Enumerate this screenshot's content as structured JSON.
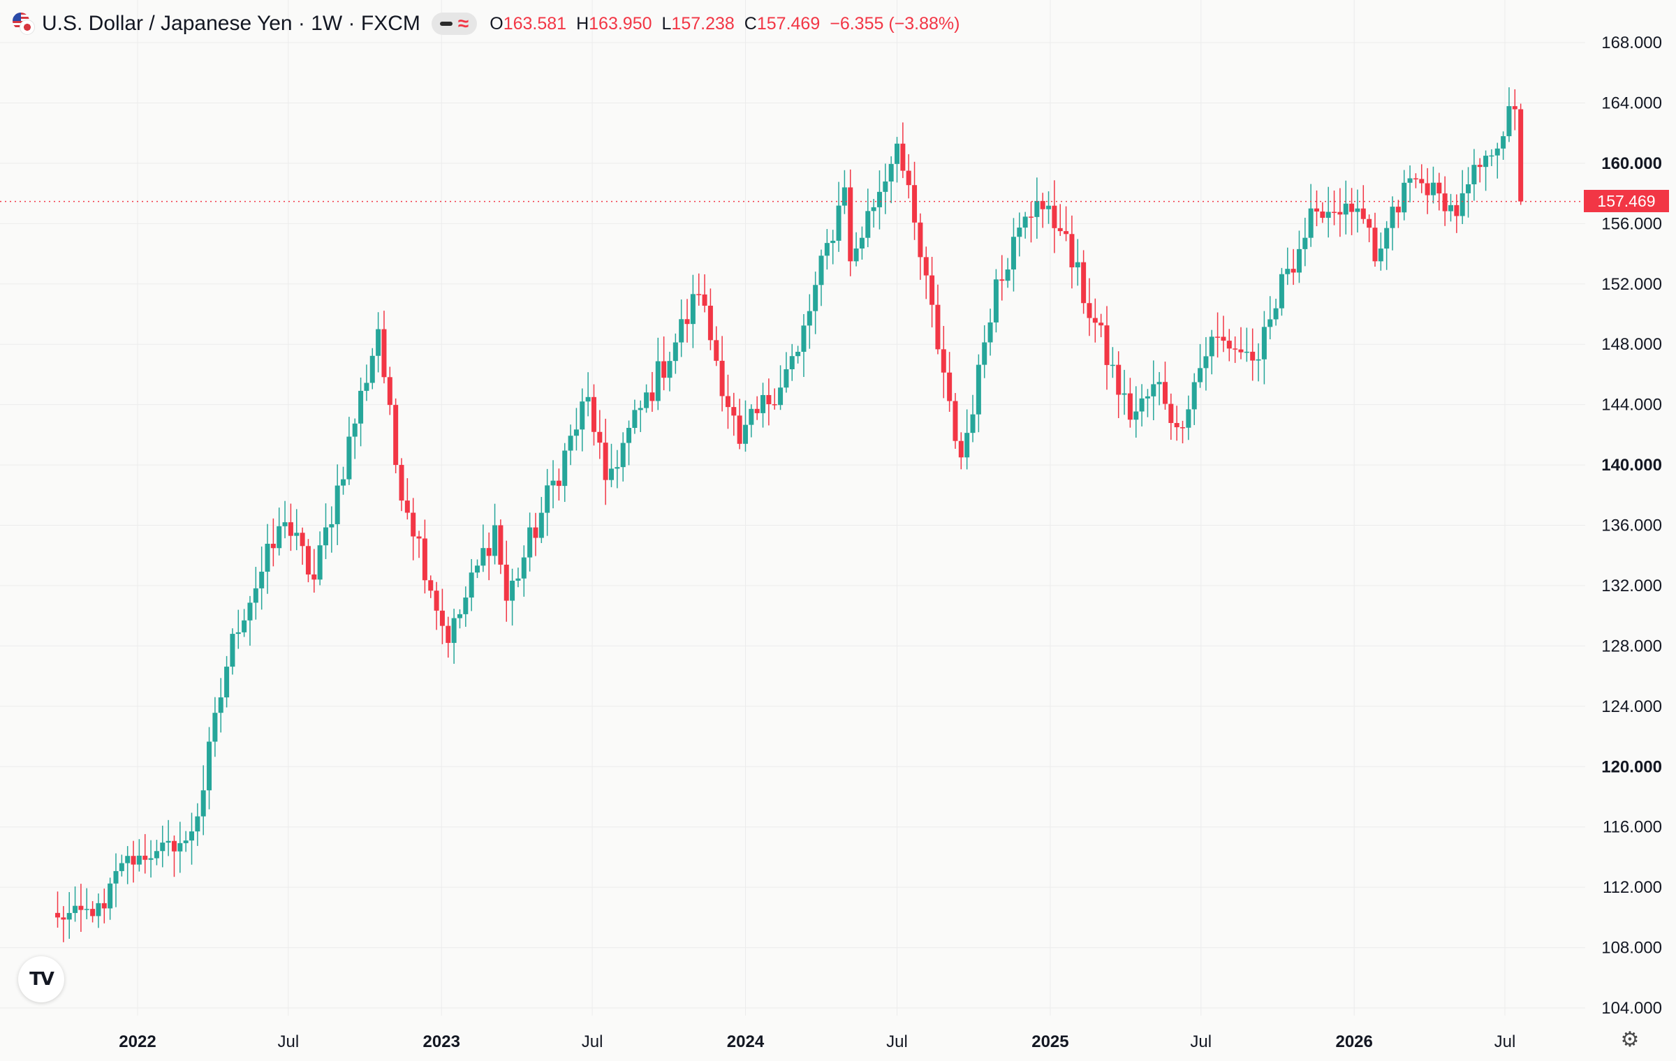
{
  "header": {
    "title": "U.S. Dollar / Japanese Yen · 1W · FXCM",
    "open_label": "O",
    "open": "163.581",
    "high_label": "H",
    "high": "163.950",
    "low_label": "L",
    "low": "157.238",
    "close_label": "C",
    "close": "157.469",
    "change": "−6.355 (−3.88%)",
    "flag_icon": "us-jp-flag-icon",
    "indicator_icons": [
      "dash-icon",
      "wave-icon"
    ]
  },
  "colors": {
    "up": "#26a69a",
    "down": "#f23645",
    "background": "#fafaf9",
    "grid": "#ececec",
    "axis_text": "#131722",
    "price_line": "#f23645"
  },
  "last_price_label": "157.469",
  "logo_icon": "tradingview-logo-icon",
  "settings_icon": "gear-icon",
  "chart_data": {
    "type": "candlestick",
    "interval": "1W",
    "x_axis": {
      "ticks": [
        {
          "date": "2022-01-01",
          "label": "2022",
          "bold": true
        },
        {
          "date": "2022-07-01",
          "label": "Jul",
          "bold": false
        },
        {
          "date": "2023-01-01",
          "label": "2023",
          "bold": true
        },
        {
          "date": "2023-07-01",
          "label": "Jul",
          "bold": false
        },
        {
          "date": "2024-01-01",
          "label": "2024",
          "bold": true
        },
        {
          "date": "2024-07-01",
          "label": "Jul",
          "bold": false
        },
        {
          "date": "2025-01-01",
          "label": "2025",
          "bold": true
        },
        {
          "date": "2025-07-01",
          "label": "Jul",
          "bold": false
        },
        {
          "date": "2026-01-01",
          "label": "2026",
          "bold": true
        },
        {
          "date": "2026-07-01",
          "label": "Jul",
          "bold": false
        }
      ]
    },
    "y_axis": {
      "range": [
        102,
        170
      ],
      "position": "right",
      "ticks": [
        {
          "value": 104,
          "label": "104.000",
          "bold": false
        },
        {
          "value": 108,
          "label": "108.000",
          "bold": false
        },
        {
          "value": 112,
          "label": "112.000",
          "bold": false
        },
        {
          "value": 116,
          "label": "116.000",
          "bold": false
        },
        {
          "value": 120,
          "label": "120.000",
          "bold": true
        },
        {
          "value": 124,
          "label": "124.000",
          "bold": false
        },
        {
          "value": 128,
          "label": "128.000",
          "bold": false
        },
        {
          "value": 132,
          "label": "132.000",
          "bold": false
        },
        {
          "value": 136,
          "label": "136.000",
          "bold": false
        },
        {
          "value": 140,
          "label": "140.000",
          "bold": true
        },
        {
          "value": 144,
          "label": "144.000",
          "bold": false
        },
        {
          "value": 148,
          "label": "148.000",
          "bold": false
        },
        {
          "value": 152,
          "label": "152.000",
          "bold": false
        },
        {
          "value": 156,
          "label": "156.000",
          "bold": false
        },
        {
          "value": 160,
          "label": "160.000",
          "bold": true
        },
        {
          "value": 164,
          "label": "164.000",
          "bold": false
        },
        {
          "value": 168,
          "label": "168.000",
          "bold": false
        }
      ]
    },
    "grid": true,
    "last_price": 157.469,
    "anchors": [
      {
        "date": "2021-09-27",
        "price": 110.0
      },
      {
        "date": "2021-11-22",
        "price": 110.6
      },
      {
        "date": "2021-12-13",
        "price": 113.6
      },
      {
        "date": "2022-01-24",
        "price": 114.4
      },
      {
        "date": "2022-02-28",
        "price": 115.1
      },
      {
        "date": "2022-03-14",
        "price": 116.7
      },
      {
        "date": "2022-04-25",
        "price": 128.8
      },
      {
        "date": "2022-06-27",
        "price": 136.2
      },
      {
        "date": "2022-08-01",
        "price": 132.4
      },
      {
        "date": "2022-10-17",
        "price": 149.0
      },
      {
        "date": "2022-11-07",
        "price": 140.0
      },
      {
        "date": "2023-01-09",
        "price": 128.2
      },
      {
        "date": "2023-03-06",
        "price": 136.0
      },
      {
        "date": "2023-03-20",
        "price": 131.0
      },
      {
        "date": "2023-06-26",
        "price": 144.5
      },
      {
        "date": "2023-07-17",
        "price": 139.0
      },
      {
        "date": "2023-11-06",
        "price": 151.3
      },
      {
        "date": "2023-12-25",
        "price": 141.4
      },
      {
        "date": "2024-03-04",
        "price": 147.5
      },
      {
        "date": "2024-04-29",
        "price": 158.4
      },
      {
        "date": "2024-05-06",
        "price": 153.5
      },
      {
        "date": "2024-07-01",
        "price": 161.3
      },
      {
        "date": "2024-09-16",
        "price": 140.5
      },
      {
        "date": "2024-10-28",
        "price": 152.3
      },
      {
        "date": "2024-12-16",
        "price": 157.5
      },
      {
        "date": "2025-01-13",
        "price": 155.5
      },
      {
        "date": "2025-04-07",
        "price": 143.0
      },
      {
        "date": "2025-05-12",
        "price": 145.5
      },
      {
        "date": "2025-06-02",
        "price": 142.5
      },
      {
        "date": "2025-07-14",
        "price": 148.5
      },
      {
        "date": "2025-09-08",
        "price": 147.0
      },
      {
        "date": "2025-10-13",
        "price": 153.0
      },
      {
        "date": "2025-11-17",
        "price": 156.8
      },
      {
        "date": "2026-01-05",
        "price": 157.0
      },
      {
        "date": "2026-01-26",
        "price": 153.5
      },
      {
        "date": "2026-03-09",
        "price": 159.0
      },
      {
        "date": "2026-04-13",
        "price": 158.0
      },
      {
        "date": "2026-05-04",
        "price": 156.5
      },
      {
        "date": "2026-06-08",
        "price": 160.5
      },
      {
        "date": "2026-07-13",
        "price": 163.58
      }
    ],
    "last_candle": {
      "date": "2026-07-20",
      "open": 163.581,
      "high": 163.95,
      "low": 157.238,
      "close": 157.469
    }
  }
}
